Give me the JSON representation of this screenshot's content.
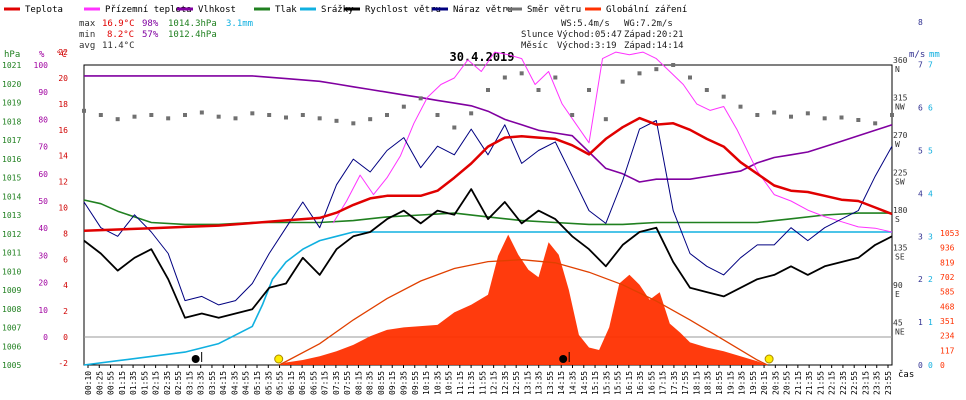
{
  "colors": {
    "temperature": "#e00000",
    "dewpoint": "#ff33ff",
    "humidity": "#8000a0",
    "pressure": "#208020",
    "rain": "#10b0e0",
    "wind_speed": "#000000",
    "wind_gust": "#000080",
    "wind_dir": "#707070",
    "radiation": "#ff3000",
    "axis_temp": "#d00000",
    "axis_hum": "#a000a0",
    "axis_press": "#208020",
    "axis_wind": "#303090",
    "axis_rain": "#10b0e0",
    "axis_rad": "#ff3000"
  },
  "legend": [
    {
      "key": "temperature",
      "label": "Teplota"
    },
    {
      "key": "dewpoint",
      "label": "Přízemní teplota"
    },
    {
      "key": "humidity",
      "label": "Vlhkost"
    },
    {
      "key": "pressure",
      "label": "Tlak"
    },
    {
      "key": "rain",
      "label": "Srážky"
    },
    {
      "key": "wind_speed",
      "label": "Rychlost větru"
    },
    {
      "key": "wind_gust",
      "label": "Náraz větru"
    },
    {
      "key": "wind_dir",
      "label": "Směr větru"
    },
    {
      "key": "radiation",
      "label": "Globální záření"
    }
  ],
  "stats": {
    "max_label": "max",
    "max_temp": "16.9°C",
    "max_hum": "98%",
    "max_press": "1014.3hPa",
    "rain_total": "3.1mm",
    "min_label": "min",
    "min_temp": "8.2°C",
    "min_hum": "57%",
    "min_press": "1012.4hPa",
    "avg_label": "avg",
    "avg_temp": "11.4°C"
  },
  "wind_info": {
    "ws": "WS:5.4m/s",
    "wg": "WG:7.2m/s"
  },
  "sun": {
    "label": "Slunce",
    "rise": "Východ:05:47",
    "set": "Západ:20:21"
  },
  "moon": {
    "label": "Měsíc",
    "rise": "Východ:3:19",
    "set": "Západ:14:14"
  },
  "date": "30.4.2019",
  "axis_unit_labels": {
    "hpa": "hPa",
    "pct": "%",
    "degc": "°C",
    "ms": "m/s",
    "mm": "mm",
    "time": "čas"
  },
  "chart_data": {
    "type": "line",
    "title": "30.4.2019",
    "x_unit": "time of day",
    "xticks": [
      "00:10",
      "00:25",
      "00:55",
      "01:15",
      "01:35",
      "01:55",
      "02:15",
      "02:35",
      "02:55",
      "03:15",
      "03:35",
      "03:55",
      "04:15",
      "04:35",
      "04:55",
      "05:15",
      "05:35",
      "05:55",
      "06:15",
      "06:35",
      "06:55",
      "07:15",
      "07:35",
      "07:55",
      "08:15",
      "08:35",
      "08:55",
      "09:15",
      "09:35",
      "09:55",
      "10:15",
      "10:35",
      "10:55",
      "11:15",
      "11:35",
      "11:55",
      "12:15",
      "12:35",
      "12:55",
      "13:15",
      "13:35",
      "13:55",
      "14:15",
      "14:35",
      "14:55",
      "15:15",
      "15:35",
      "15:55",
      "16:15",
      "16:35",
      "16:55",
      "17:15",
      "17:35",
      "17:55",
      "18:15",
      "18:35",
      "18:55",
      "19:15",
      "19:35",
      "19:55",
      "20:15",
      "20:35",
      "20:55",
      "21:15",
      "21:35",
      "21:55",
      "22:15",
      "22:35",
      "22:55",
      "23:15",
      "23:35",
      "23:55"
    ],
    "axes": {
      "pressure_hpa": {
        "ticks": [
          1021,
          1020,
          1019,
          1018,
          1017,
          1016,
          1015,
          1014,
          1013,
          1012,
          1011,
          1010,
          1009,
          1008,
          1007,
          1006,
          1005
        ],
        "range": [
          1005,
          1021
        ]
      },
      "humidity_pct": {
        "ticks": [
          100,
          90,
          80,
          70,
          60,
          50,
          40,
          30,
          20,
          10,
          0
        ],
        "range": [
          0,
          100
        ]
      },
      "temperature_c": {
        "ticks": [
          22,
          20,
          18,
          16,
          14,
          12,
          10,
          8,
          6,
          4,
          2,
          0,
          -2
        ],
        "range": [
          -2,
          22
        ]
      },
      "wind_ms": {
        "ticks": [
          8,
          7,
          6,
          5,
          4,
          3,
          2,
          1,
          0
        ]
      },
      "rain_mm": {
        "ticks": [
          7,
          6,
          5,
          4,
          3,
          2,
          1,
          0
        ]
      },
      "wind_dir": {
        "ticks": [
          "360 N",
          "315 NW",
          "270 W",
          "225 SW",
          "180 S",
          "135 SE",
          "90 E",
          "45 NE"
        ]
      },
      "radiation": {
        "ticks": [
          1053,
          936,
          819,
          702,
          585,
          468,
          351,
          234,
          117,
          0
        ]
      }
    },
    "series": [
      {
        "name": "Teplota",
        "key": "temperature",
        "unit": "°C",
        "axis": "temperature_c",
        "x": [
          0,
          1,
          2,
          3,
          4,
          5,
          6,
          7,
          7.5,
          8,
          8.5,
          9,
          9.5,
          10,
          10.5,
          11,
          11.5,
          12,
          12.5,
          13,
          13.5,
          14,
          14.5,
          15,
          15.5,
          16,
          16.5,
          17,
          17.5,
          18,
          18.5,
          19,
          19.5,
          20,
          20.5,
          21,
          21.5,
          22,
          22.5,
          23,
          23.5,
          24
        ],
        "y": [
          8.2,
          8.3,
          8.4,
          8.5,
          8.6,
          8.8,
          9.0,
          9.2,
          9.6,
          10.2,
          10.7,
          10.9,
          10.9,
          10.9,
          11.3,
          12.3,
          13.4,
          14.7,
          15.4,
          15.5,
          15.4,
          15.3,
          14.8,
          14.1,
          15.3,
          16.2,
          16.9,
          16.4,
          16.5,
          16.0,
          15.3,
          14.7,
          13.5,
          12.6,
          11.7,
          11.3,
          11.2,
          10.9,
          10.6,
          10.5,
          10.0,
          9.5
        ]
      },
      {
        "name": "Přízemní teplota",
        "key": "dewpoint",
        "unit": "°C",
        "axis": "temperature_c",
        "x": [
          0,
          1,
          2,
          3,
          4,
          5,
          6,
          7,
          7.4,
          7.8,
          8.2,
          8.6,
          9.0,
          9.4,
          9.8,
          10.2,
          10.6,
          11.0,
          11.4,
          11.8,
          12.2,
          12.6,
          13.0,
          13.4,
          13.8,
          14.2,
          14.6,
          15.0,
          15.4,
          15.8,
          16.2,
          16.6,
          17.0,
          17.4,
          17.8,
          18.2,
          18.6,
          19.0,
          19.4,
          20.0,
          20.5,
          21,
          21.5,
          22,
          22.5,
          23,
          23.5,
          24
        ],
        "y": [
          null,
          null,
          null,
          null,
          null,
          null,
          null,
          null,
          8.8,
          10.5,
          12.5,
          11.0,
          12.3,
          14.0,
          16.5,
          18.5,
          19.5,
          20.0,
          21.4,
          20.5,
          22.0,
          21.8,
          21.5,
          19.5,
          20.5,
          18.0,
          16.5,
          15.0,
          21.5,
          22.0,
          21.8,
          22.0,
          21.5,
          20.5,
          19.5,
          18.0,
          17.5,
          17.8,
          16.0,
          12.8,
          11.0,
          10.5,
          9.8,
          9.3,
          8.9,
          8.5,
          8.4,
          8.1
        ]
      },
      {
        "name": "Vlhkost",
        "key": "humidity",
        "unit": "%",
        "axis": "humidity_pct",
        "x": [
          0,
          1,
          2,
          3,
          4,
          5,
          6,
          7,
          7.5,
          8,
          8.5,
          9,
          9.5,
          10,
          10.5,
          11,
          11.5,
          12,
          12.5,
          13,
          13.5,
          14,
          14.5,
          15,
          15.5,
          16,
          16.5,
          17,
          17.5,
          18,
          18.5,
          19,
          19.5,
          20,
          20.5,
          21,
          21.5,
          22,
          22.5,
          23,
          23.5,
          24
        ],
        "y": [
          96,
          96,
          96,
          96,
          96,
          96,
          95,
          94,
          93,
          92,
          91,
          90,
          89,
          88,
          87,
          86,
          85,
          83,
          80,
          78,
          76,
          75,
          74,
          68,
          62,
          60,
          57,
          58,
          58,
          58,
          59,
          60,
          61,
          64,
          66,
          67,
          68,
          70,
          72,
          74,
          76,
          78
        ]
      },
      {
        "name": "Tlak",
        "key": "pressure",
        "unit": "hPa",
        "axis": "pressure_hpa",
        "x": [
          0,
          0.5,
          1,
          1.5,
          2,
          3,
          4,
          5,
          6,
          7,
          8,
          9,
          10,
          11,
          12,
          13,
          14,
          15,
          16,
          17,
          18,
          19,
          20,
          21,
          22,
          23,
          24
        ],
        "y": [
          1013.8,
          1013.6,
          1013.2,
          1012.9,
          1012.6,
          1012.5,
          1012.5,
          1012.6,
          1012.6,
          1012.6,
          1012.7,
          1012.9,
          1013.0,
          1013.1,
          1012.9,
          1012.7,
          1012.6,
          1012.5,
          1012.5,
          1012.6,
          1012.6,
          1012.6,
          1012.6,
          1012.8,
          1013.0,
          1013.1,
          1013.1
        ]
      },
      {
        "name": "Srážky",
        "key": "rain",
        "unit": "mm",
        "axis": "rain_mm",
        "x": [
          0,
          1,
          2,
          3,
          4,
          5,
          5.3,
          5.6,
          6,
          6.5,
          7,
          7.5,
          8,
          24
        ],
        "y": [
          0,
          0.1,
          0.2,
          0.3,
          0.5,
          0.9,
          1.4,
          2.0,
          2.4,
          2.7,
          2.9,
          3.0,
          3.1,
          3.1
        ]
      },
      {
        "name": "Rychlost větru",
        "key": "wind_speed",
        "unit": "m/s",
        "axis": "wind_ms",
        "x": [
          0,
          0.5,
          1,
          1.5,
          2,
          2.5,
          3,
          3.5,
          4,
          4.5,
          5,
          5.5,
          6,
          6.5,
          7,
          7.5,
          8,
          8.5,
          9,
          9.5,
          10,
          10.5,
          11,
          11.5,
          12,
          12.5,
          13,
          13.5,
          14,
          14.5,
          15,
          15.5,
          16,
          16.5,
          17,
          17.5,
          18,
          18.5,
          19,
          19.5,
          20,
          20.5,
          21,
          21.5,
          22,
          22.5,
          23,
          23.5,
          24
        ],
        "y": [
          2.9,
          2.6,
          2.2,
          2.5,
          2.7,
          2.0,
          1.1,
          1.2,
          1.1,
          1.2,
          1.3,
          1.8,
          1.9,
          2.5,
          2.1,
          2.7,
          3.0,
          3.1,
          3.4,
          3.6,
          3.3,
          3.6,
          3.5,
          4.1,
          3.4,
          3.8,
          3.3,
          3.6,
          3.4,
          3.0,
          2.7,
          2.3,
          2.8,
          3.1,
          3.2,
          2.4,
          1.8,
          1.7,
          1.6,
          1.8,
          2.0,
          2.1,
          2.3,
          2.1,
          2.3,
          2.4,
          2.5,
          2.8,
          3.0
        ]
      },
      {
        "name": "Náraz větru",
        "key": "wind_gust",
        "unit": "m/s",
        "axis": "wind_ms",
        "x": [
          0,
          0.5,
          1,
          1.5,
          2,
          2.5,
          3,
          3.5,
          4,
          4.5,
          5,
          5.5,
          6,
          6.5,
          7,
          7.5,
          8,
          8.5,
          9,
          9.5,
          10,
          10.5,
          11,
          11.5,
          12,
          12.5,
          13,
          13.5,
          14,
          14.5,
          15,
          15.5,
          16,
          16.5,
          17,
          17.5,
          18,
          18.5,
          19,
          19.5,
          20,
          20.5,
          21,
          21.5,
          22,
          22.5,
          23,
          23.5,
          24
        ],
        "y": [
          3.8,
          3.2,
          3.0,
          3.5,
          3.1,
          2.6,
          1.5,
          1.6,
          1.4,
          1.5,
          1.9,
          2.6,
          3.2,
          3.8,
          3.2,
          4.2,
          4.8,
          4.5,
          5.0,
          5.3,
          4.6,
          5.1,
          4.9,
          5.5,
          4.9,
          5.6,
          4.7,
          5.0,
          5.2,
          4.4,
          3.6,
          3.3,
          4.3,
          5.5,
          5.7,
          3.6,
          2.6,
          2.3,
          2.1,
          2.5,
          2.8,
          2.8,
          3.2,
          2.9,
          3.2,
          3.4,
          3.6,
          4.4,
          5.1
        ]
      },
      {
        "name": "Směr větru",
        "key": "wind_dir",
        "unit": "°",
        "axis": "wind_dir",
        "x": [
          0,
          0.5,
          1,
          1.5,
          2,
          2.5,
          3,
          3.5,
          4,
          4.5,
          5,
          5.5,
          6,
          6.5,
          7,
          7.5,
          8,
          8.5,
          9,
          9.5,
          10,
          10.5,
          11,
          11.5,
          12,
          12.5,
          13,
          13.5,
          14,
          14.5,
          15,
          15.5,
          16,
          16.5,
          17,
          17.5,
          18,
          18.5,
          19,
          19.5,
          20,
          20.5,
          21,
          21.5,
          22,
          22.5,
          23,
          23.5,
          24
        ],
        "y": [
          305,
          300,
          295,
          298,
          300,
          296,
          300,
          303,
          298,
          296,
          302,
          300,
          297,
          300,
          296,
          293,
          290,
          295,
          300,
          310,
          320,
          300,
          285,
          302,
          330,
          345,
          350,
          330,
          345,
          300,
          330,
          295,
          340,
          350,
          355,
          360,
          345,
          330,
          322,
          310,
          300,
          303,
          298,
          302,
          296,
          297,
          294,
          290,
          300
        ]
      },
      {
        "name": "Globální záření",
        "key": "radiation",
        "unit": "W/m²",
        "axis": "radiation",
        "x": [
          0,
          5.8,
          6,
          6.5,
          7,
          7.5,
          8,
          8.5,
          9,
          9.5,
          10,
          10.5,
          11,
          11.5,
          12,
          12.3,
          12.6,
          12.9,
          13.2,
          13.5,
          13.8,
          14.1,
          14.4,
          14.7,
          15.0,
          15.3,
          15.6,
          15.9,
          16.2,
          16.5,
          16.8,
          17.1,
          17.4,
          17.7,
          18.0,
          18.5,
          19,
          19.5,
          20,
          20.3,
          24
        ],
        "y": [
          0,
          0,
          20,
          40,
          70,
          110,
          160,
          230,
          280,
          300,
          310,
          320,
          420,
          480,
          560,
          870,
          1040,
          880,
          760,
          700,
          980,
          880,
          600,
          240,
          140,
          120,
          300,
          650,
          720,
          640,
          520,
          580,
          330,
          260,
          180,
          140,
          110,
          70,
          30,
          0,
          0
        ]
      }
    ],
    "reference_curve": {
      "name": "clear-sky radiation",
      "x": [
        5.8,
        7,
        8,
        9,
        10,
        11,
        12,
        13,
        14,
        15,
        16,
        17,
        18,
        19,
        20,
        20.3
      ],
      "y": [
        0,
        170,
        360,
        530,
        670,
        770,
        825,
        840,
        815,
        740,
        640,
        510,
        360,
        200,
        40,
        0
      ]
    },
    "markers": {
      "sunrise": "05:47",
      "sunset": "20:21",
      "moonrise": "3:19",
      "moonset": "14:14"
    }
  }
}
